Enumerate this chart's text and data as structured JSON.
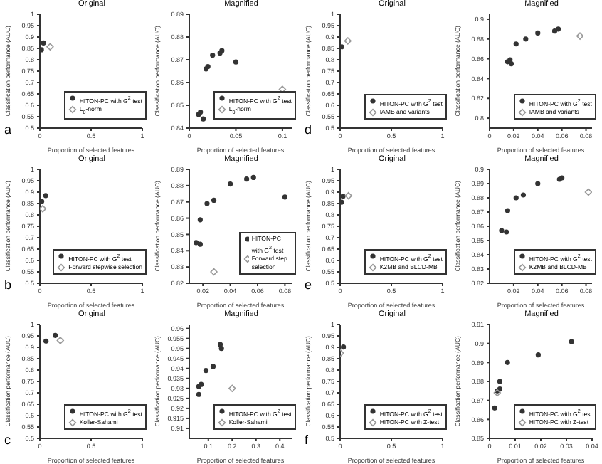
{
  "chart_data": [
    {
      "type": "scatter",
      "title": "Original",
      "xlabel": "Proportion of selected features",
      "ylabel": "Classification performance (AUC)",
      "xlim": [
        0,
        1
      ],
      "xticks": [
        0,
        0.5,
        1
      ],
      "ylim": [
        0.5,
        1
      ],
      "yticks": [
        0.5,
        0.55,
        0.6,
        0.65,
        0.7,
        0.75,
        0.8,
        0.85,
        0.9,
        0.95,
        1
      ],
      "legend": "bottom right",
      "annotations": [
        "a"
      ],
      "series": [
        {
          "name": "HITON-PC with G$^{2}$ test",
          "color": "#333333",
          "marker": "circle",
          "x": [
            0.015,
            0.035
          ],
          "values": [
            0.844,
            0.874
          ]
        },
        {
          "name": "L$_{0}$-norm",
          "color": "#999999",
          "marker": "diamond",
          "x": [
            0.1
          ],
          "values": [
            0.857
          ]
        }
      ]
    },
    {
      "type": "scatter",
      "title": "Magnified",
      "xlabel": "Proportion of selected features",
      "ylabel": "Classification performance (AUC)",
      "xlim": [
        0,
        0.11
      ],
      "xticks": [
        0,
        0.05,
        0.1
      ],
      "ylim": [
        0.84,
        0.89
      ],
      "yticks": [
        0.84,
        0.85,
        0.86,
        0.87,
        0.88,
        0.89
      ],
      "legend": "bottom right",
      "series": [
        {
          "name": "HITON-PC with G$^{2}$ test",
          "color": "#333333",
          "marker": "circle",
          "x": [
            0.01,
            0.012,
            0.015,
            0.018,
            0.02,
            0.025,
            0.033,
            0.035,
            0.05
          ],
          "values": [
            0.846,
            0.847,
            0.844,
            0.866,
            0.867,
            0.872,
            0.873,
            0.874,
            0.869
          ]
        },
        {
          "name": "L$_{0}$-norm",
          "color": "#999999",
          "marker": "diamond",
          "x": [
            0.1
          ],
          "values": [
            0.857
          ]
        }
      ]
    },
    {
      "type": "scatter",
      "title": "Original",
      "xlabel": "Proportion of selected features",
      "ylabel": "Classification performance (AUC)",
      "xlim": [
        0,
        1
      ],
      "xticks": [
        0,
        0.5,
        1
      ],
      "ylim": [
        0.5,
        1
      ],
      "yticks": [
        0.5,
        0.55,
        0.6,
        0.65,
        0.7,
        0.75,
        0.8,
        0.85,
        0.9,
        0.95,
        1
      ],
      "legend": "bottom right",
      "annotations": [
        "b"
      ],
      "series": [
        {
          "name": "HITON-PC with G$^{2}$ test",
          "color": "#333333",
          "marker": "circle",
          "x": [
            0.018,
            0.057
          ],
          "values": [
            0.859,
            0.885
          ]
        },
        {
          "name": "Forward stepwise selection",
          "color": "#999999",
          "marker": "diamond",
          "x": [
            0.028
          ],
          "values": [
            0.827
          ]
        }
      ]
    },
    {
      "type": "scatter",
      "title": "Magnified",
      "xlabel": "Proportion of selected features",
      "ylabel": "Classification performance (AUC)",
      "xlim": [
        0.01,
        0.085
      ],
      "xticks": [
        0.02,
        0.04,
        0.06,
        0.08
      ],
      "ylim": [
        0.82,
        0.89
      ],
      "yticks": [
        0.82,
        0.83,
        0.84,
        0.85,
        0.86,
        0.87,
        0.88,
        0.89
      ],
      "legend": "bottom right",
      "series": [
        {
          "name": "HITON-PC with G$^{2}$ test",
          "color": "#333333",
          "marker": "circle",
          "x": [
            0.015,
            0.018,
            0.018,
            0.023,
            0.028,
            0.04,
            0.052,
            0.057,
            0.08
          ],
          "values": [
            0.845,
            0.844,
            0.859,
            0.869,
            0.871,
            0.881,
            0.884,
            0.885,
            0.873
          ]
        },
        {
          "name": "Forward step. selection",
          "color": "#999999",
          "marker": "diamond",
          "x": [
            0.028
          ],
          "values": [
            0.827
          ]
        }
      ]
    },
    {
      "type": "scatter",
      "title": "Original",
      "xlabel": "Proportion of selected features",
      "ylabel": "Classification performance (AUC)",
      "xlim": [
        0,
        1
      ],
      "xticks": [
        0,
        0.5,
        1
      ],
      "ylim": [
        0.5,
        1
      ],
      "yticks": [
        0.5,
        0.55,
        0.6,
        0.65,
        0.7,
        0.75,
        0.8,
        0.85,
        0.9,
        0.95,
        1
      ],
      "legend": "bottom right",
      "annotations": [
        "c"
      ],
      "series": [
        {
          "name": "HITON-PC with G$^{2}$ test",
          "color": "#333333",
          "marker": "circle",
          "x": [
            0.06,
            0.15
          ],
          "values": [
            0.927,
            0.952
          ]
        },
        {
          "name": "Koller-Sahami",
          "color": "#999999",
          "marker": "diamond",
          "x": [
            0.2
          ],
          "values": [
            0.93
          ]
        }
      ]
    },
    {
      "type": "scatter",
      "title": "Magnified",
      "xlabel": "Proportion of selected features",
      "ylabel": "Classification performance (AUC)",
      "xlim": [
        0.02,
        0.45
      ],
      "xticks": [
        0.1,
        0.2,
        0.3,
        0.4
      ],
      "ylim": [
        0.905,
        0.962
      ],
      "yticks": [
        0.91,
        0.915,
        0.92,
        0.925,
        0.93,
        0.935,
        0.94,
        0.945,
        0.95,
        0.955,
        0.96
      ],
      "legend": "bottom right",
      "series": [
        {
          "name": "HITON-PC with G$^{2}$ test",
          "color": "#333333",
          "marker": "circle",
          "x": [
            0.06,
            0.06,
            0.07,
            0.09,
            0.12,
            0.15,
            0.155
          ],
          "values": [
            0.927,
            0.931,
            0.932,
            0.939,
            0.941,
            0.952,
            0.95
          ]
        },
        {
          "name": "Koller-Sahami",
          "color": "#999999",
          "marker": "diamond",
          "x": [
            0.2
          ],
          "values": [
            0.93
          ]
        }
      ]
    },
    {
      "type": "scatter",
      "title": "Original",
      "xlabel": "Proportion of selected features",
      "ylabel": "Classification performance (AUC)",
      "xlim": [
        0,
        1
      ],
      "xticks": [
        0,
        0.5,
        1
      ],
      "ylim": [
        0.5,
        1
      ],
      "yticks": [
        0.5,
        0.55,
        0.6,
        0.65,
        0.7,
        0.75,
        0.8,
        0.85,
        0.9,
        0.95,
        1
      ],
      "legend": "bottom right",
      "annotations": [
        "d"
      ],
      "series": [
        {
          "name": "HITON-PC with G$^{2}$ test",
          "color": "#333333",
          "marker": "circle",
          "x": [
            0.015
          ],
          "values": [
            0.857
          ]
        },
        {
          "name": "IAMB and variants",
          "color": "#999999",
          "marker": "diamond",
          "x": [
            0.075
          ],
          "values": [
            0.883
          ]
        }
      ]
    },
    {
      "type": "scatter",
      "title": "Magnified",
      "xlabel": "Proportion of selected features",
      "ylabel": "Classification performance (AUC)",
      "xlim": [
        0,
        0.085
      ],
      "xticks": [
        0,
        0.02,
        0.04,
        0.06,
        0.08
      ],
      "ylim": [
        0.79,
        0.905
      ],
      "yticks": [
        0.8,
        0.82,
        0.84,
        0.86,
        0.88,
        0.9
      ],
      "legend": "bottom right",
      "series": [
        {
          "name": "HITON-PC with G$^{2}$ test",
          "color": "#333333",
          "marker": "circle",
          "x": [
            0.015,
            0.017,
            0.018,
            0.022,
            0.03,
            0.04,
            0.054,
            0.057
          ],
          "values": [
            0.857,
            0.859,
            0.855,
            0.875,
            0.88,
            0.886,
            0.888,
            0.89
          ]
        },
        {
          "name": "IAMB and variants",
          "color": "#999999",
          "marker": "diamond",
          "x": [
            0.075
          ],
          "values": [
            0.883
          ]
        }
      ]
    },
    {
      "type": "scatter",
      "title": "Original",
      "xlabel": "Proportion of selected features",
      "ylabel": "Classification performance (AUC)",
      "xlim": [
        0,
        1
      ],
      "xticks": [
        0,
        0.5,
        1
      ],
      "ylim": [
        0.5,
        1
      ],
      "yticks": [
        0.5,
        0.55,
        0.6,
        0.65,
        0.7,
        0.75,
        0.8,
        0.85,
        0.9,
        0.95,
        1
      ],
      "legend": "bottom right",
      "annotations": [
        "e"
      ],
      "series": [
        {
          "name": "HITON-PC with G$^{2}$ test",
          "color": "#333333",
          "marker": "circle",
          "x": [
            0.014,
            0.028
          ],
          "values": [
            0.856,
            0.882
          ]
        },
        {
          "name": "K2MB and BLCD-MB",
          "color": "#999999",
          "marker": "diamond",
          "x": [
            0.082
          ],
          "values": [
            0.884
          ]
        }
      ]
    },
    {
      "type": "scatter",
      "title": "Magnified",
      "xlabel": "Proportion of selected features",
      "ylabel": "Classification performance (AUC)",
      "xlim": [
        0,
        0.085
      ],
      "xticks": [
        0.02,
        0.04,
        0.06,
        0.08
      ],
      "ylim": [
        0.82,
        0.9
      ],
      "yticks": [
        0.82,
        0.83,
        0.84,
        0.85,
        0.86,
        0.87,
        0.88,
        0.89,
        0.9
      ],
      "legend": "bottom right",
      "series": [
        {
          "name": "HITON-PC with G$^{2}$ test",
          "color": "#333333",
          "marker": "circle",
          "x": [
            0.01,
            0.014,
            0.015,
            0.022,
            0.028,
            0.04,
            0.058,
            0.06
          ],
          "values": [
            0.857,
            0.856,
            0.871,
            0.88,
            0.882,
            0.89,
            0.893,
            0.894
          ]
        },
        {
          "name": "K2MB and BLCD-MB",
          "color": "#999999",
          "marker": "diamond",
          "x": [
            0.082
          ],
          "values": [
            0.884
          ]
        }
      ]
    },
    {
      "type": "scatter",
      "title": "Original",
      "xlabel": "Proportion of selected features",
      "ylabel": "Classification performance (AUC)",
      "xlim": [
        0,
        1
      ],
      "xticks": [
        0,
        0.5,
        1
      ],
      "ylim": [
        0.5,
        1
      ],
      "yticks": [
        0.5,
        0.55,
        0.6,
        0.65,
        0.7,
        0.75,
        0.8,
        0.85,
        0.9,
        0.95,
        1
      ],
      "legend": "bottom right",
      "annotations": [
        "f"
      ],
      "series": [
        {
          "name": "HITON-PC with G$^{2}$ test",
          "color": "#333333",
          "marker": "circle",
          "x": [
            0.032
          ],
          "values": [
            0.901
          ]
        },
        {
          "name": "HITON-PC with Z-test",
          "color": "#999999",
          "marker": "diamond",
          "x": [
            0.003
          ],
          "values": [
            0.874
          ]
        }
      ]
    },
    {
      "type": "scatter",
      "title": "Magnified",
      "xlabel": "Proportion of selected features",
      "ylabel": "Classification performance (AUC)",
      "xlim": [
        0,
        0.04
      ],
      "xticks": [
        0,
        0.01,
        0.02,
        0.03,
        0.04
      ],
      "ylim": [
        0.85,
        0.91
      ],
      "yticks": [
        0.85,
        0.86,
        0.87,
        0.88,
        0.89,
        0.9,
        0.91
      ],
      "legend": "bottom right",
      "series": [
        {
          "name": "HITON-PC with G$^{2}$ test",
          "color": "#333333",
          "marker": "circle",
          "x": [
            0.002,
            0.003,
            0.004,
            0.004,
            0.007,
            0.019,
            0.032
          ],
          "values": [
            0.866,
            0.875,
            0.876,
            0.88,
            0.89,
            0.894,
            0.901
          ]
        },
        {
          "name": "HITON-PC with Z-test",
          "color": "#999999",
          "marker": "diamond",
          "x": [
            0.003
          ],
          "values": [
            0.874
          ]
        }
      ]
    }
  ]
}
